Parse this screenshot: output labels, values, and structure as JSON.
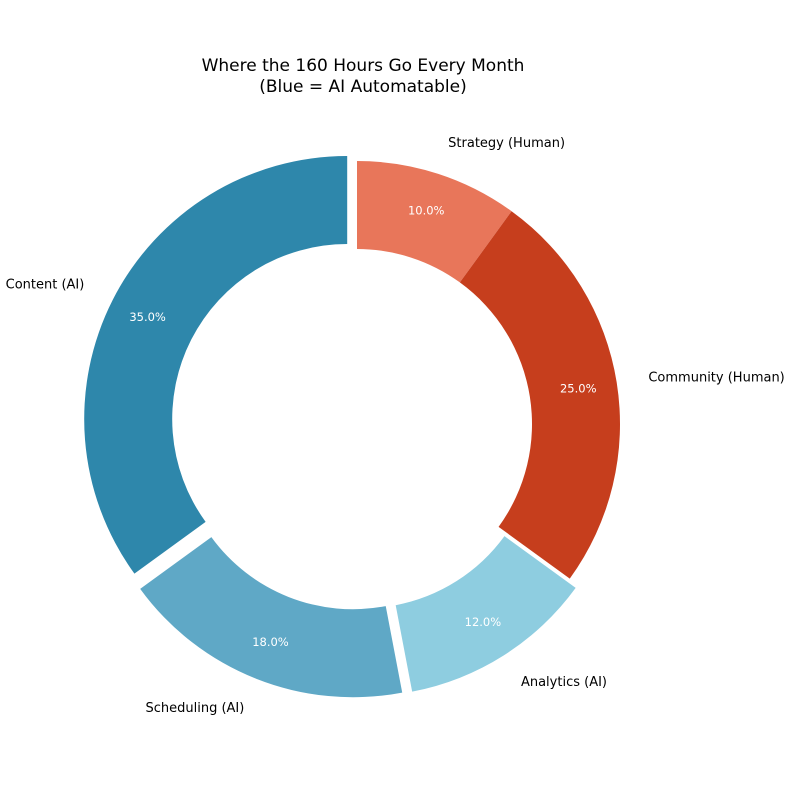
{
  "chart_data": {
    "type": "pie",
    "title_lines": [
      "Where the 160 Hours Go Every Month",
      "(Blue = AI Automatable)"
    ],
    "slices": [
      {
        "label": "Strategy (Human)",
        "value": 10.0,
        "pct_label": "10.0%",
        "color": "#e8765a"
      },
      {
        "label": "Community (Human)",
        "value": 25.0,
        "pct_label": "25.0%",
        "color": "#c63e1d"
      },
      {
        "label": "Analytics (AI)",
        "value": 12.0,
        "pct_label": "12.0%",
        "color": "#8ecde0"
      },
      {
        "label": "Scheduling (AI)",
        "value": 18.0,
        "pct_label": "18.0%",
        "color": "#5fa8c6"
      },
      {
        "label": "Content (AI)",
        "value": 35.0,
        "pct_label": "35.0%",
        "color": "#2e87ab"
      }
    ],
    "donut": true,
    "start_angle": "top",
    "direction": "clockwise",
    "exploded": [
      "Analytics (AI)",
      "Scheduling (AI)",
      "Content (AI)"
    ],
    "legend": "none"
  }
}
